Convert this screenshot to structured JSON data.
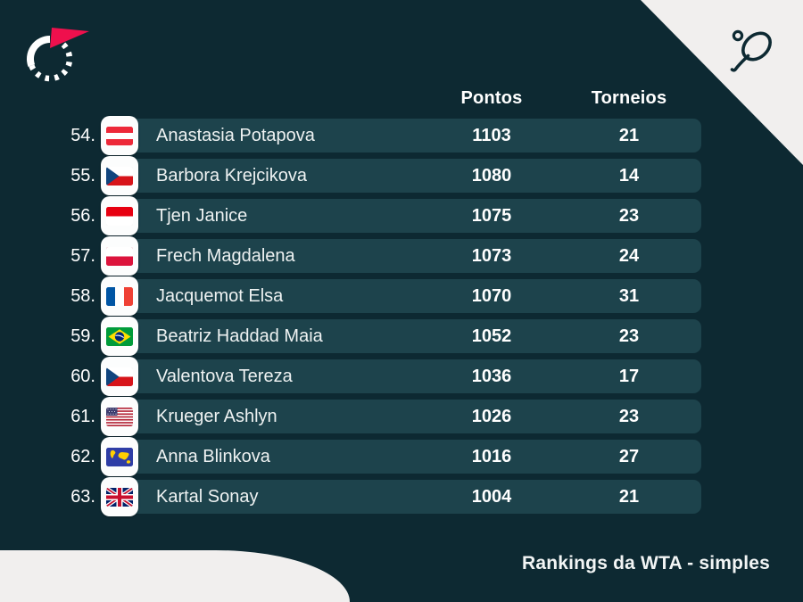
{
  "branding": {
    "logo_icon": "speed-gauge-logo-icon",
    "corner_icon": "tennis-racket-ball-icon"
  },
  "colors": {
    "background": "#0d2932",
    "row_bar": "#1d434c",
    "corner_white": "#f1efee",
    "accent_red": "#ef104d",
    "text": "#ffffff"
  },
  "header": {
    "points_label": "Pontos",
    "tournaments_label": "Torneios"
  },
  "footer": {
    "caption": "Rankings da WTA - simples"
  },
  "rows": [
    {
      "rank": "54.",
      "flag": "austria-flag",
      "flag_code": "at",
      "name": "Anastasia Potapova",
      "points": "1103",
      "tournaments": "21"
    },
    {
      "rank": "55.",
      "flag": "czech-republic-flag",
      "flag_code": "cz",
      "name": "Barbora Krejcikova",
      "points": "1080",
      "tournaments": "14"
    },
    {
      "rank": "56.",
      "flag": "indonesia-flag",
      "flag_code": "id",
      "name": "Tjen Janice",
      "points": "1075",
      "tournaments": "23"
    },
    {
      "rank": "57.",
      "flag": "poland-flag",
      "flag_code": "pl",
      "name": "Frech Magdalena",
      "points": "1073",
      "tournaments": "24"
    },
    {
      "rank": "58.",
      "flag": "france-flag",
      "flag_code": "fr",
      "name": "Jacquemot Elsa",
      "points": "1070",
      "tournaments": "31"
    },
    {
      "rank": "59.",
      "flag": "brazil-flag",
      "flag_code": "br",
      "name": "Beatriz Haddad Maia",
      "points": "1052",
      "tournaments": "23"
    },
    {
      "rank": "60.",
      "flag": "czech-republic-flag",
      "flag_code": "cz",
      "name": "Valentova Tereza",
      "points": "1036",
      "tournaments": "17"
    },
    {
      "rank": "61.",
      "flag": "usa-flag",
      "flag_code": "us",
      "name": "Krueger Ashlyn",
      "points": "1026",
      "tournaments": "23"
    },
    {
      "rank": "62.",
      "flag": "world-flag",
      "flag_code": "world",
      "name": "Anna Blinkova",
      "points": "1016",
      "tournaments": "27"
    },
    {
      "rank": "63.",
      "flag": "great-britain-flag",
      "flag_code": "gb",
      "name": "Kartal Sonay",
      "points": "1004",
      "tournaments": "21"
    }
  ]
}
